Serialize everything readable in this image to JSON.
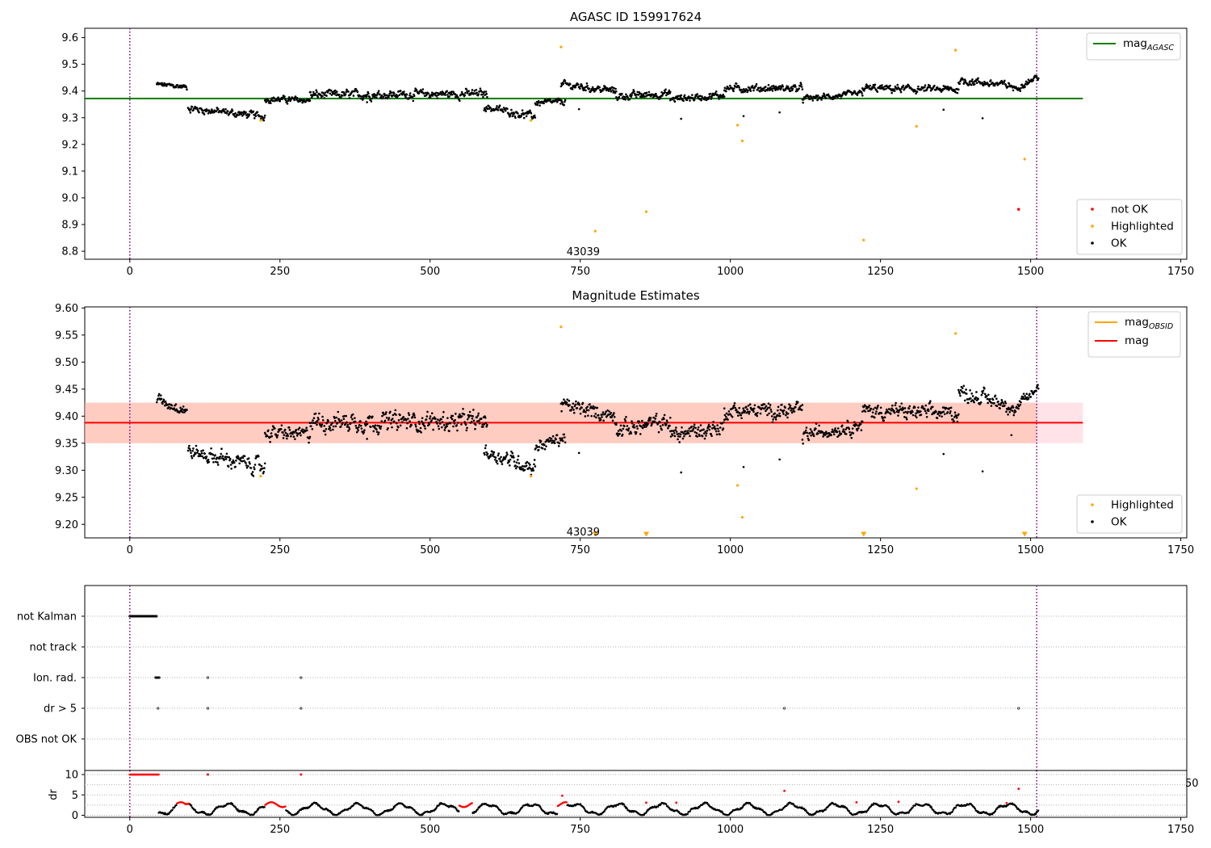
{
  "chart_data": [
    {
      "type": "scatter",
      "title": "AGASC ID 159917624",
      "xlim": [
        -75,
        1760
      ],
      "ylim": [
        8.77,
        9.635
      ],
      "xticks": [
        0,
        250,
        500,
        750,
        1000,
        1250,
        1500,
        1750
      ],
      "yticks": [
        8.8,
        8.9,
        9.0,
        9.1,
        9.2,
        9.3,
        9.4,
        9.5,
        9.6
      ],
      "ytick_labels": [
        "8.8",
        "8.9",
        "9.0",
        "9.1",
        "9.2",
        "9.3",
        "9.4",
        "9.5",
        "9.6"
      ],
      "vlines": [
        0,
        1510
      ],
      "hline": {
        "y": 9.372,
        "x": [
          -75,
          1587
        ],
        "color": "#008000"
      },
      "annotation": {
        "text": "43039",
        "x": 755,
        "y": 8.8
      },
      "legend_lines": [
        {
          "base": "mag",
          "sub": "AGASC",
          "color": "#008000"
        }
      ],
      "legend_points": [
        {
          "label": "not OK",
          "color": "#ff0000"
        },
        {
          "label": "Highlighted",
          "color": "#ffa500"
        },
        {
          "label": "OK",
          "color": "#000000"
        }
      ],
      "ok_series": {
        "color": "#000000",
        "segments": [
          {
            "x": [
              45,
              95
            ],
            "y": [
              9.425,
              9.415
            ],
            "noise": 0.008
          },
          {
            "x": [
              97,
              225
            ],
            "y": [
              9.335,
              9.305
            ],
            "noise": 0.012
          },
          {
            "x": [
              225,
              300
            ],
            "y": [
              9.37,
              9.365
            ],
            "noise": 0.01
          },
          {
            "x": [
              300,
              595
            ],
            "y": [
              9.385,
              9.39
            ],
            "noise": 0.014
          },
          {
            "x": [
              590,
              675
            ],
            "y": [
              9.34,
              9.305
            ],
            "noise": 0.012
          },
          {
            "x": [
              675,
              725
            ],
            "y": [
              9.355,
              9.36
            ],
            "noise": 0.01
          },
          {
            "x": [
              718,
              810
            ],
            "y": [
              9.425,
              9.4
            ],
            "noise": 0.012
          },
          {
            "x": [
              810,
              900
            ],
            "y": [
              9.38,
              9.39
            ],
            "noise": 0.012
          },
          {
            "x": [
              900,
              990
            ],
            "y": [
              9.37,
              9.385
            ],
            "noise": 0.012
          },
          {
            "x": [
              990,
              1120
            ],
            "y": [
              9.41,
              9.41
            ],
            "noise": 0.012
          },
          {
            "x": [
              1120,
              1220
            ],
            "y": [
              9.37,
              9.39
            ],
            "noise": 0.01
          },
          {
            "x": [
              1220,
              1380
            ],
            "y": [
              9.41,
              9.405
            ],
            "noise": 0.012
          },
          {
            "x": [
              1380,
              1470
            ],
            "y": [
              9.44,
              9.42
            ],
            "noise": 0.012
          },
          {
            "x": [
              1470,
              1513
            ],
            "y": [
              9.405,
              9.455
            ],
            "noise": 0.01
          }
        ],
        "points": [
          {
            "x": 395,
            "y": 9.358
          },
          {
            "x": 748,
            "y": 9.332
          },
          {
            "x": 918,
            "y": 9.296
          },
          {
            "x": 1022,
            "y": 9.306
          },
          {
            "x": 1082,
            "y": 9.32
          },
          {
            "x": 1355,
            "y": 9.33
          },
          {
            "x": 1420,
            "y": 9.298
          }
        ]
      },
      "highlighted": [
        {
          "x": 218,
          "y": 9.29
        },
        {
          "x": 668,
          "y": 9.29
        },
        {
          "x": 718,
          "y": 9.565
        },
        {
          "x": 775,
          "y": 8.875
        },
        {
          "x": 860,
          "y": 8.948
        },
        {
          "x": 1012,
          "y": 9.272
        },
        {
          "x": 1020,
          "y": 9.213
        },
        {
          "x": 1222,
          "y": 8.842
        },
        {
          "x": 1310,
          "y": 9.268
        },
        {
          "x": 1375,
          "y": 9.553
        },
        {
          "x": 1490,
          "y": 9.145
        }
      ],
      "not_ok": [
        {
          "x": 1480,
          "y": 8.957
        }
      ]
    },
    {
      "type": "scatter",
      "title": "Magnitude Estimates",
      "xlim": [
        -75,
        1760
      ],
      "ylim": [
        9.175,
        9.602
      ],
      "xticks": [
        0,
        250,
        500,
        750,
        1000,
        1250,
        1500,
        1750
      ],
      "yticks": [
        9.2,
        9.25,
        9.3,
        9.35,
        9.4,
        9.45,
        9.5,
        9.55,
        9.6
      ],
      "ytick_labels": [
        "9.20",
        "9.25",
        "9.30",
        "9.35",
        "9.40",
        "9.45",
        "9.50",
        "9.55",
        "9.60"
      ],
      "vlines": [
        0,
        1510
      ],
      "hline": {
        "y": 9.388,
        "x": [
          -75,
          1587
        ],
        "color": "#ff0000"
      },
      "band_pink": {
        "y": [
          9.35,
          9.425
        ],
        "x": [
          -75,
          1587
        ],
        "color": "#ffc0cb"
      },
      "band_orange": {
        "y": [
          9.35,
          9.425
        ],
        "x": [
          -75,
          1510
        ],
        "color": "#ffa07a"
      },
      "annotation": {
        "text": "43039",
        "x": 755,
        "y": 9.187
      },
      "legend_lines": [
        {
          "base": "mag",
          "sub": "OBSID",
          "color": "#ffa500"
        },
        {
          "base": "mag",
          "sub": "",
          "color": "#ff0000"
        }
      ],
      "legend_points": [
        {
          "label": "Highlighted",
          "color": "#ffa500"
        },
        {
          "label": "OK",
          "color": "#000000"
        }
      ],
      "ok_series": {
        "color": "#000000",
        "segments": [
          {
            "x": [
              45,
              95
            ],
            "y": [
              9.43,
              9.412
            ],
            "noise": 0.009
          },
          {
            "x": [
              97,
              225
            ],
            "y": [
              9.335,
              9.305
            ],
            "noise": 0.012
          },
          {
            "x": [
              225,
              300
            ],
            "y": [
              9.37,
              9.365
            ],
            "noise": 0.011
          },
          {
            "x": [
              300,
              595
            ],
            "y": [
              9.39,
              9.39
            ],
            "noise": 0.015
          },
          {
            "x": [
              590,
              675
            ],
            "y": [
              9.335,
              9.305
            ],
            "noise": 0.012
          },
          {
            "x": [
              675,
              725
            ],
            "y": [
              9.345,
              9.36
            ],
            "noise": 0.01
          },
          {
            "x": [
              718,
              810
            ],
            "y": [
              9.42,
              9.4
            ],
            "noise": 0.012
          },
          {
            "x": [
              810,
              900
            ],
            "y": [
              9.375,
              9.39
            ],
            "noise": 0.013
          },
          {
            "x": [
              900,
              990
            ],
            "y": [
              9.365,
              9.38
            ],
            "noise": 0.013
          },
          {
            "x": [
              990,
              1120
            ],
            "y": [
              9.41,
              9.41
            ],
            "noise": 0.012
          },
          {
            "x": [
              1120,
              1220
            ],
            "y": [
              9.365,
              9.385
            ],
            "noise": 0.011
          },
          {
            "x": [
              1220,
              1380
            ],
            "y": [
              9.41,
              9.405
            ],
            "noise": 0.012
          },
          {
            "x": [
              1380,
              1470
            ],
            "y": [
              9.445,
              9.42
            ],
            "noise": 0.012
          },
          {
            "x": [
              1470,
              1513
            ],
            "y": [
              9.405,
              9.455
            ],
            "noise": 0.01
          }
        ],
        "points": [
          {
            "x": 395,
            "y": 9.358
          },
          {
            "x": 748,
            "y": 9.332
          },
          {
            "x": 918,
            "y": 9.296
          },
          {
            "x": 1022,
            "y": 9.306
          },
          {
            "x": 1082,
            "y": 9.32
          },
          {
            "x": 1355,
            "y": 9.33
          },
          {
            "x": 1420,
            "y": 9.298
          },
          {
            "x": 1468,
            "y": 9.365
          }
        ]
      },
      "highlighted": [
        {
          "x": 218,
          "y": 9.289
        },
        {
          "x": 668,
          "y": 9.289
        },
        {
          "x": 718,
          "y": 9.565
        },
        {
          "x": 1012,
          "y": 9.272
        },
        {
          "x": 1020,
          "y": 9.213
        },
        {
          "x": 1310,
          "y": 9.266
        },
        {
          "x": 1375,
          "y": 9.553
        }
      ],
      "lower_limits": [
        {
          "x": 775
        },
        {
          "x": 860
        },
        {
          "x": 1222
        },
        {
          "x": 1490
        }
      ]
    },
    {
      "type": "scatter",
      "title": "",
      "xlim": [
        -75,
        1760
      ],
      "categories": [
        "not Kalman",
        "not track",
        "Ion. rad.",
        "dr > 5",
        "OBS not OK"
      ],
      "vlines": [
        0,
        1510
      ],
      "flags": {
        "not Kalman": {
          "range": [
            0,
            45
          ],
          "points": []
        },
        "not track": {
          "range": null,
          "points": []
        },
        "Ion. rad.": {
          "range": [
            43,
            50
          ],
          "points": [
            130,
            285
          ]
        },
        "dr > 5": {
          "range": null,
          "points": [
            47,
            130,
            285,
            1090,
            1480
          ]
        },
        "OBS not OK": {
          "range": null,
          "points": []
        }
      }
    },
    {
      "type": "scatter",
      "title": "",
      "ylabel": "dr",
      "xlim": [
        -75,
        1760
      ],
      "ylim": [
        -0.5,
        11
      ],
      "xticks": [
        0,
        250,
        500,
        750,
        1000,
        1250,
        1500,
        1750
      ],
      "yticks": [
        0,
        5,
        10
      ],
      "ytick_labels": [
        "0",
        "5",
        "10"
      ],
      "vlines": [
        0,
        1510
      ],
      "hlines": [
        0,
        2.5,
        5,
        7.5,
        10
      ],
      "overflow_text": "50",
      "clip_row": {
        "x": [
          0,
          48
        ],
        "y": 10,
        "color": "#ff0000",
        "points": [
          130,
          285
        ]
      },
      "red_runs": [
        [
          78,
          100
        ],
        [
          225,
          260
        ],
        [
          548,
          570
        ],
        [
          712,
          728
        ]
      ],
      "red_points": [
        {
          "x": 720,
          "y": 4.8
        },
        {
          "x": 860,
          "y": 3.1
        },
        {
          "x": 910,
          "y": 3.1
        },
        {
          "x": 1090,
          "y": 6.0
        },
        {
          "x": 1210,
          "y": 3.2
        },
        {
          "x": 1280,
          "y": 3.3
        },
        {
          "x": 1460,
          "y": 3.0
        },
        {
          "x": 1480,
          "y": 6.5
        }
      ],
      "data_range": [
        48,
        1513
      ]
    }
  ]
}
